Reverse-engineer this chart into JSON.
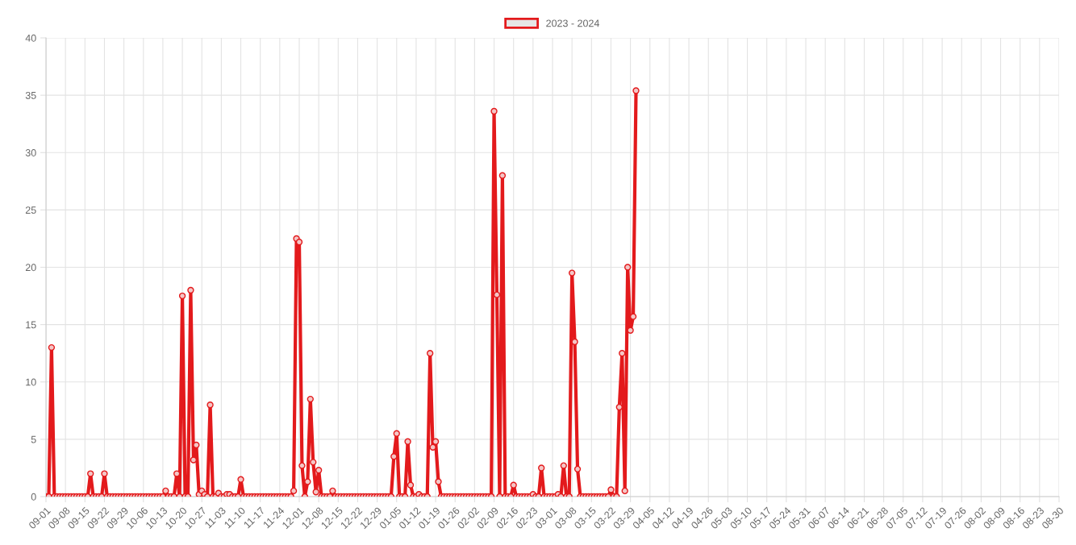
{
  "chart_data": {
    "type": "line",
    "categories": [
      "09-01",
      null,
      null,
      null,
      null,
      null,
      null,
      "09-08",
      null,
      null,
      null,
      null,
      null,
      null,
      "09-15",
      null,
      null,
      null,
      null,
      null,
      null,
      "09-22",
      null,
      null,
      null,
      null,
      null,
      null,
      "09-29",
      null,
      null,
      null,
      null,
      null,
      null,
      "10-06",
      null,
      null,
      null,
      null,
      null,
      null,
      "10-13",
      null,
      null,
      null,
      null,
      null,
      null,
      "10-20",
      null,
      null,
      null,
      null,
      null,
      null,
      "10-27",
      null,
      null,
      null,
      null,
      null,
      null,
      "11-03",
      null,
      null,
      null,
      null,
      null,
      null,
      "11-10",
      null,
      null,
      null,
      null,
      null,
      null,
      "11-17",
      null,
      null,
      null,
      null,
      null,
      null,
      "11-24",
      null,
      null,
      null,
      null,
      null,
      null,
      "12-01",
      null,
      null,
      null,
      null,
      null,
      null,
      "12-08",
      null,
      null,
      null,
      null,
      null,
      null,
      "12-15",
      null,
      null,
      null,
      null,
      null,
      null,
      "12-22",
      null,
      null,
      null,
      null,
      null,
      null,
      "12-29",
      null,
      null,
      null,
      null,
      null,
      null,
      "01-05",
      null,
      null,
      null,
      null,
      null,
      null,
      "01-12",
      null,
      null,
      null,
      null,
      null,
      null,
      "01-19",
      null,
      null,
      null,
      null,
      null,
      null,
      "01-26",
      null,
      null,
      null,
      null,
      null,
      null,
      "02-02",
      null,
      null,
      null,
      null,
      null,
      null,
      "02-09",
      null,
      null,
      null,
      null,
      null,
      null,
      "02-16",
      null,
      null,
      null,
      null,
      null,
      null,
      "02-23",
      null,
      null,
      null,
      null,
      null,
      null,
      "03-01",
      null,
      null,
      null,
      null,
      null,
      null,
      "03-08",
      null,
      null,
      null,
      null,
      null,
      null,
      "03-15",
      null,
      null,
      null,
      null,
      null,
      null,
      "03-22",
      null,
      null,
      null,
      null,
      null,
      null,
      "03-29",
      null,
      null,
      null,
      null,
      null,
      null,
      "04-05",
      null,
      null,
      null,
      null,
      null,
      null,
      "04-12",
      null,
      null,
      null,
      null,
      null,
      null,
      "04-19",
      null,
      null,
      null,
      null,
      null,
      null,
      "04-26",
      null,
      null,
      null,
      null,
      null,
      null,
      "05-03",
      null,
      null,
      null,
      null,
      null,
      null,
      "05-10",
      null,
      null,
      null,
      null,
      null,
      null,
      "05-17",
      null,
      null,
      null,
      null,
      null,
      null,
      "05-24",
      null,
      null,
      null,
      null,
      null,
      null,
      "05-31",
      null,
      null,
      null,
      null,
      null,
      null,
      "06-07",
      null,
      null,
      null,
      null,
      null,
      null,
      "06-14",
      null,
      null,
      null,
      null,
      null,
      null,
      "06-21",
      null,
      null,
      null,
      null,
      null,
      null,
      "06-28",
      null,
      null,
      null,
      null,
      null,
      null,
      "07-05",
      null,
      null,
      null,
      null,
      null,
      null,
      "07-12",
      null,
      null,
      null,
      null,
      null,
      null,
      "07-19",
      null,
      null,
      null,
      null,
      null,
      null,
      "07-26",
      null,
      null,
      null,
      null,
      null,
      null,
      "08-02",
      null,
      null,
      null,
      null,
      null,
      null,
      "08-09",
      null,
      null,
      null,
      null,
      null,
      null,
      "08-16",
      null,
      null,
      null,
      null,
      null,
      null,
      "08-23",
      null,
      null,
      null,
      null,
      null,
      null,
      "08-30"
    ],
    "series": [
      {
        "name": "2023 - 2024",
        "color": "#e31a1c",
        "values": [
          0,
          0,
          13,
          0,
          0,
          0,
          0,
          0,
          0,
          0,
          0,
          0,
          0,
          0,
          0,
          0,
          2,
          0,
          0,
          0,
          0,
          2,
          0,
          0,
          0,
          0,
          0,
          0,
          0,
          0,
          0,
          0,
          0,
          0,
          0,
          0,
          0,
          0,
          0,
          0,
          0,
          0,
          0,
          0.5,
          0,
          0,
          0,
          2,
          0,
          17.5,
          0,
          0,
          18,
          3.2,
          4.5,
          0.2,
          0.5,
          0.2,
          0,
          8,
          0,
          0,
          0.3,
          0,
          0,
          0.2,
          0.2,
          0,
          0,
          0,
          1.5,
          0,
          0,
          0,
          0,
          0,
          0,
          0,
          0,
          0,
          0,
          0,
          0,
          0,
          0,
          0,
          0,
          0,
          0,
          0.5,
          22.5,
          22.2,
          2.7,
          0,
          1.3,
          8.5,
          3,
          0.4,
          2.3,
          0,
          0,
          0,
          0,
          0.5,
          0,
          0,
          0,
          0,
          0,
          0,
          0,
          0,
          0,
          0,
          0,
          0,
          0,
          0,
          0,
          0,
          0,
          0,
          0,
          0,
          0,
          3.5,
          5.5,
          0,
          0,
          0,
          4.8,
          1,
          0,
          0,
          0.2,
          0,
          0,
          0,
          12.5,
          4.3,
          4.8,
          1.3,
          0,
          0,
          0,
          0,
          0,
          0,
          0,
          0,
          0,
          0,
          0,
          0,
          0,
          0,
          0,
          0,
          0,
          0,
          0,
          33.6,
          17.6,
          0,
          28,
          0,
          0,
          0,
          1,
          0,
          0,
          0,
          0,
          0,
          0,
          0.2,
          0,
          0,
          2.5,
          0,
          0,
          0,
          0,
          0,
          0.2,
          0,
          2.7,
          0,
          0,
          19.5,
          13.5,
          2.4,
          0,
          0,
          0,
          0,
          0,
          0,
          0,
          0,
          0,
          0,
          0,
          0.6,
          0,
          0,
          7.8,
          12.5,
          0.5,
          20,
          14.5,
          15.7,
          35.4,
          null,
          null,
          null,
          null,
          null,
          null,
          null,
          null,
          null,
          null,
          null,
          null,
          null,
          null,
          null,
          null,
          null,
          null,
          null,
          null,
          null,
          null,
          null,
          null,
          null,
          null,
          null,
          null,
          null,
          null,
          null,
          null,
          null,
          null,
          null,
          null,
          null,
          null,
          null,
          null,
          null,
          null,
          null,
          null,
          null,
          null,
          null,
          null,
          null,
          null,
          null,
          null,
          null,
          null,
          null,
          null,
          null,
          null,
          null,
          null,
          null,
          null,
          null,
          null,
          null,
          null,
          null,
          null,
          null,
          null,
          null,
          null,
          null,
          null,
          null,
          null,
          null,
          null,
          null,
          null,
          null,
          null,
          null,
          null,
          null,
          null,
          null,
          null,
          null,
          null,
          null,
          null,
          null,
          null,
          null,
          null,
          null,
          null,
          null,
          null,
          null,
          null,
          null,
          null,
          null,
          null,
          null,
          null,
          null,
          null,
          null,
          null,
          null,
          null,
          null,
          null,
          null,
          null,
          null,
          null,
          null,
          null,
          null,
          null,
          null,
          null,
          null,
          null,
          null,
          null,
          null,
          null,
          null,
          null,
          null,
          null,
          null,
          null,
          null,
          null,
          null,
          null,
          null,
          null,
          null,
          null,
          null,
          null,
          null,
          null,
          null,
          null
        ]
      }
    ],
    "ylim": [
      0,
      40
    ],
    "yticks": [
      0,
      5,
      10,
      15,
      20,
      25,
      30,
      35,
      40
    ],
    "grid": true,
    "legend": "top",
    "marker": "circle",
    "line_style": "solid"
  }
}
